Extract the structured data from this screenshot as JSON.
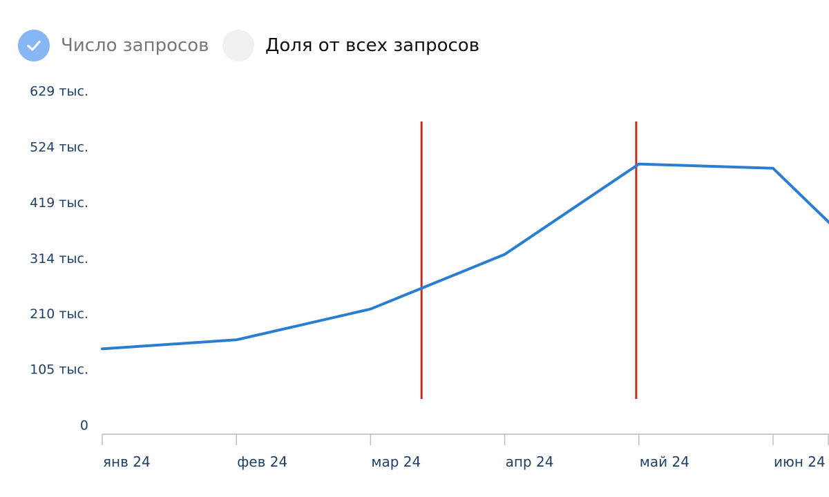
{
  "legend": {
    "count_label": "Число запросов",
    "count_checked": true,
    "share_label": "Доля от всех запросов",
    "share_checked": false
  },
  "colors": {
    "line": "#2a7dd1",
    "marker": "#c0301f",
    "axis": "#b8bcc4",
    "tick_text": "#1f3f66",
    "check_active": "#86b6f4",
    "check_inactive": "#f0f0f0"
  },
  "icons": {
    "count_toggle": "check-icon"
  },
  "chart_data": {
    "type": "line",
    "x": [
      "янв 24",
      "фев 24",
      "мар 24",
      "апр 24",
      "май 24",
      "июн 24"
    ],
    "series": [
      {
        "values": [
          145000,
          162000,
          220000,
          323000,
          493000,
          485000
        ]
      }
    ],
    "y_ticks": [
      {
        "value": 0,
        "label": "0"
      },
      {
        "value": 105000,
        "label": "105 тыс."
      },
      {
        "value": 210000,
        "label": "210 тыс."
      },
      {
        "value": 314000,
        "label": "314 тыс."
      },
      {
        "value": 419000,
        "label": "419 тыс."
      },
      {
        "value": 524000,
        "label": "524 тыс."
      },
      {
        "value": 629000,
        "label": "629 тыс."
      }
    ],
    "ylim": [
      0,
      629000
    ],
    "markers": [
      {
        "x": "мар 24",
        "offset_months": 0.38
      },
      {
        "x": "май 24",
        "offset_months": -0.02
      }
    ],
    "trailing_point": {
      "after": "июн 24",
      "offset_months": 0.45,
      "value": 375000
    },
    "grid": false,
    "legend_position": "top-left"
  }
}
